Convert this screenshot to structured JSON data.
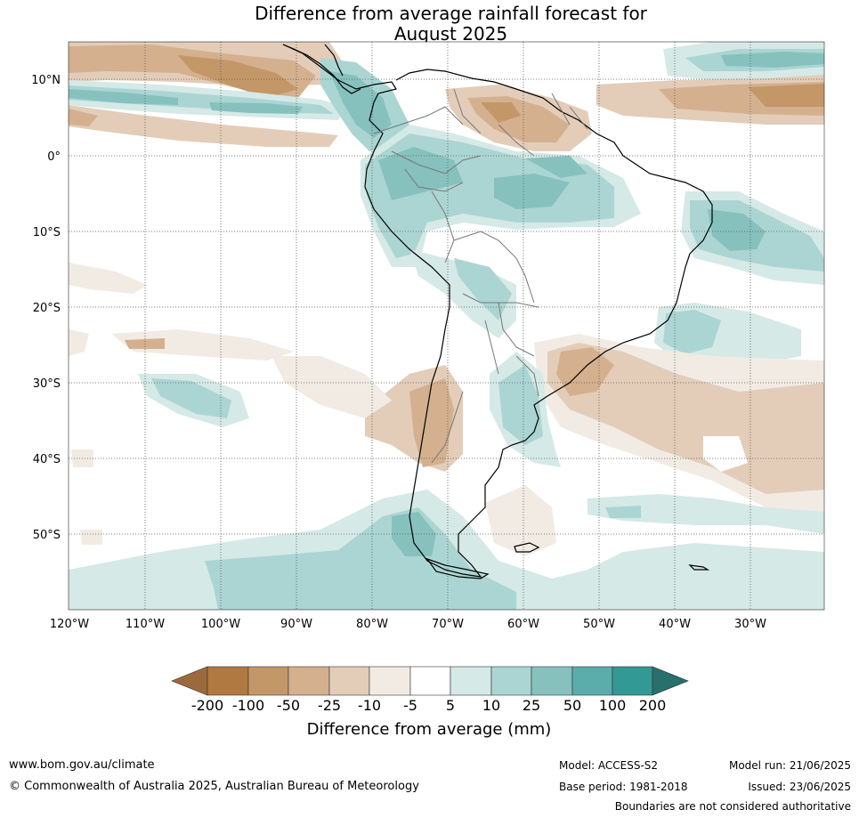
{
  "title_line1": "Difference from average rainfall forecast for",
  "title_line2": "August 2025",
  "map": {
    "lat_labels": [
      "10°N",
      "0°",
      "10°S",
      "20°S",
      "30°S",
      "40°S",
      "50°S"
    ],
    "lon_labels": [
      "120°W",
      "110°W",
      "100°W",
      "90°W",
      "80°W",
      "70°W",
      "60°W",
      "50°W",
      "40°W",
      "30°W"
    ],
    "gridlines": true,
    "region": "South America"
  },
  "colorbar": {
    "label": "Difference from average (mm)",
    "ticks": [
      "-200",
      "-100",
      "-50",
      "-25",
      "-10",
      "-5",
      "5",
      "10",
      "25",
      "50",
      "100",
      "200"
    ],
    "colors": [
      "#9c6a3a",
      "#b0793f",
      "#c49768",
      "#d4b08f",
      "#e3cdb9",
      "#f1ebe4",
      "#ffffff",
      "#d5e9e7",
      "#abd5d3",
      "#86c1be",
      "#5aadaa",
      "#329994",
      "#27706c"
    ]
  },
  "footer": {
    "website": "www.bom.gov.au/climate",
    "copyright": "© Commonwealth of Australia 2025, Australian Bureau of Meteorology",
    "model": "Model: ACCESS-S2",
    "base_period": "Base period: 1981-2018",
    "model_run": "Model run: 21/06/2025",
    "issued": "Issued: 23/06/2025",
    "disclaimer": "Boundaries are not considered authoritative"
  }
}
